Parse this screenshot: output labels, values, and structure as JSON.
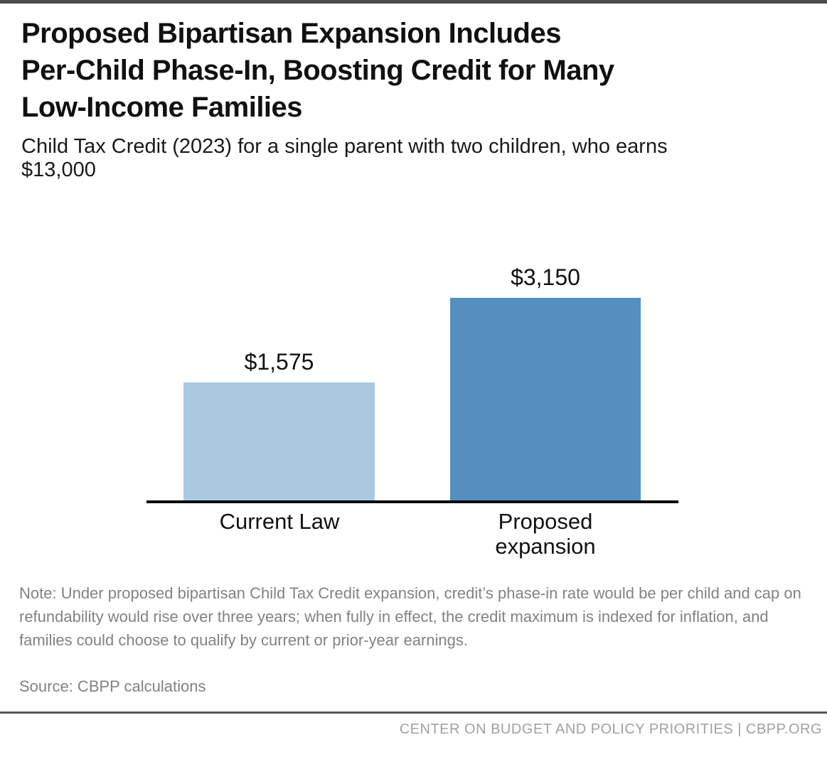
{
  "colors": {
    "top_bar": "#4c4c4c",
    "bar_light": "#aac9e1",
    "bar_dark": "#548fc0",
    "axis": "#0a0a0a",
    "text_dark": "#111111",
    "text_gray": "#808285",
    "footer_gray": "#9ea1a4"
  },
  "header": {
    "title_lines": [
      "Proposed Bipartisan Expansion Includes",
      "Per-Child Phase-In, Boosting Credit for Many",
      "Low-Income Families"
    ],
    "subtitle_lines": [
      "Child Tax Credit (2023) for a single parent with two children, who earns",
      "$13,000"
    ]
  },
  "chart_data": {
    "type": "bar",
    "title": "Proposed Bipartisan Expansion Includes Per-Child Phase-In, Boosting Credit for Many Low-Income Families",
    "subtitle": "Child Tax Credit (2023) for a single parent with two children, who earns $13,000",
    "categories": [
      "Current Law",
      "Proposed expansion"
    ],
    "values": [
      1575,
      3150
    ],
    "value_labels": [
      "$1,575",
      "$3,150"
    ],
    "bar_colors": [
      "#aac9e1",
      "#548fc0"
    ],
    "xlabel": "",
    "ylabel": "",
    "ylim": [
      0,
      3150
    ],
    "grid": false,
    "legend": false,
    "y_axis_shown": false
  },
  "footnotes": {
    "note": "Note: Under proposed bipartisan Child Tax Credit expansion, credit’s phase-in rate would be per child and cap on refundability would rise over three years; when fully in effect, the credit maximum is indexed for inflation, and families could choose to qualify by current or prior-year earnings.",
    "source": "Source: CBPP calculations"
  },
  "footer": {
    "credit": "CENTER ON BUDGET AND POLICY PRIORITIES | CBPP.ORG"
  }
}
